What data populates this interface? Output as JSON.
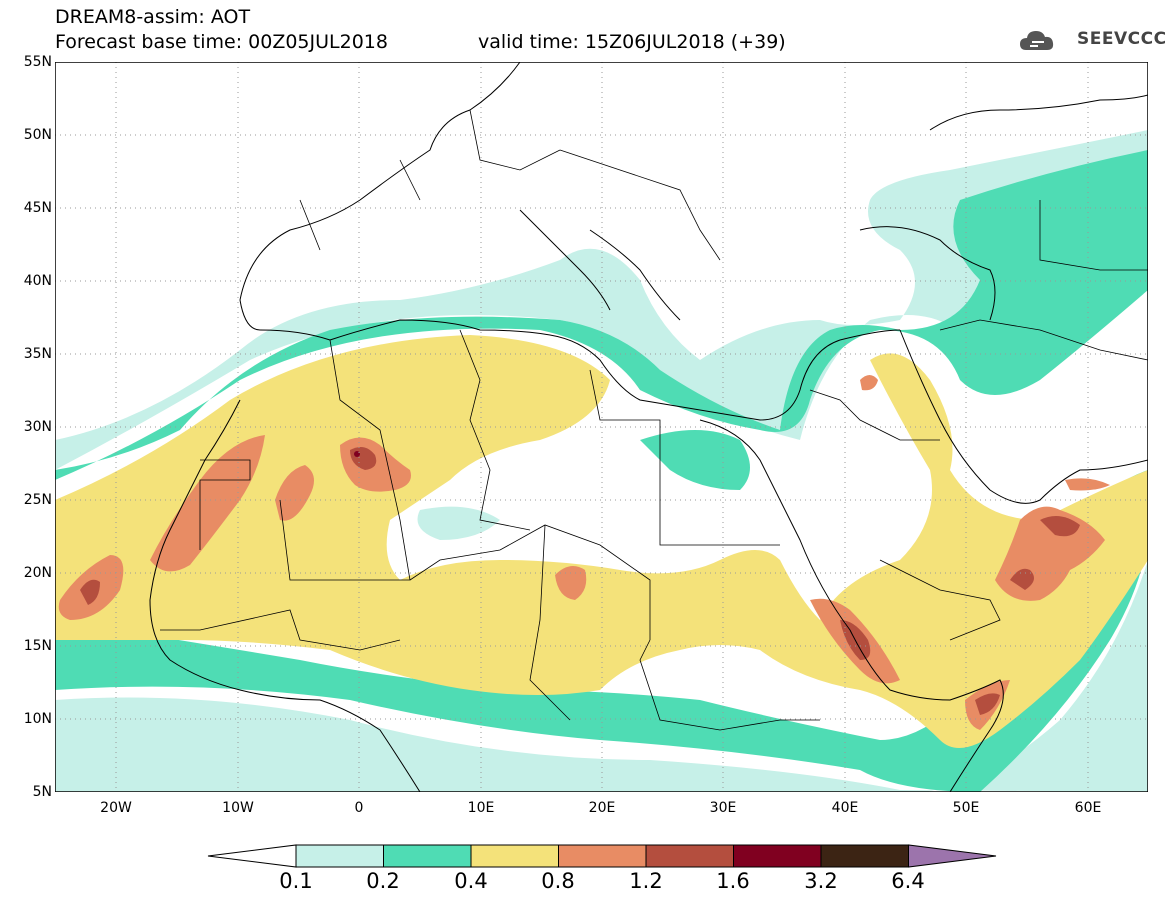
{
  "header": {
    "title": "DREAM8-assim: AOT",
    "base_time": "Forecast base time: 00Z05JUL2018",
    "valid_time": "valid time: 15Z06JUL2018 (+39)",
    "logo_text": "SEEVCCC"
  },
  "axes": {
    "lat_labels": [
      "55N",
      "50N",
      "45N",
      "40N",
      "35N",
      "30N",
      "25N",
      "20N",
      "15N",
      "10N",
      "5N"
    ],
    "lon_labels": [
      "20W",
      "10W",
      "0",
      "10E",
      "20E",
      "30E",
      "40E",
      "50E",
      "60E"
    ]
  },
  "legend": {
    "values": [
      "0.1",
      "0.2",
      "0.4",
      "0.8",
      "1.2",
      "1.6",
      "3.2",
      "6.4"
    ],
    "colors": [
      "#ffffff",
      "#c6f0e8",
      "#4fdcb4",
      "#f4e27a",
      "#e88c64",
      "#b44e3e",
      "#800020",
      "#3c2414",
      "#9c74ac"
    ]
  },
  "colors": {
    "ocean": "#ffffff",
    "border": "#000000",
    "grid": "#999999"
  }
}
